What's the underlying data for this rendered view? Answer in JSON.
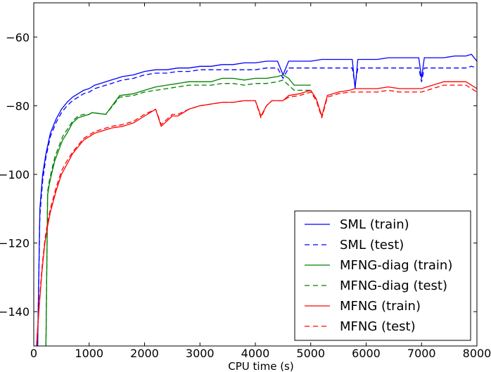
{
  "chart_data": {
    "type": "line",
    "title": "",
    "xlabel": "CPU time (s)",
    "ylabel": "",
    "xlim": [
      0,
      8000
    ],
    "ylim": [
      -150,
      -50
    ],
    "xticks": [
      0,
      1000,
      2000,
      3000,
      4000,
      5000,
      6000,
      7000,
      8000
    ],
    "yticks": [
      -140,
      -120,
      -100,
      -80,
      -60
    ],
    "xtick_labels": [
      "0",
      "1000",
      "2000",
      "3000",
      "4000",
      "5000",
      "6000",
      "7000",
      "8000"
    ],
    "ytick_labels": [
      "−140",
      "−120",
      "−100",
      "−80",
      "−60"
    ],
    "grid": false,
    "legend_position": "bottom-right",
    "series": [
      {
        "name": "SML (train)",
        "color": "#0000ff",
        "dash": "solid",
        "x": [
          70,
          110,
          160,
          220,
          300,
          400,
          500,
          600,
          700,
          800,
          900,
          1000,
          1100,
          1200,
          1300,
          1400,
          1500,
          1600,
          1800,
          2000,
          2200,
          2400,
          2600,
          2800,
          3000,
          3200,
          3400,
          3600,
          3800,
          4000,
          4200,
          4400,
          4500,
          4600,
          4800,
          5000,
          5200,
          5400,
          5600,
          5750,
          5800,
          5850,
          6000,
          6200,
          6400,
          6600,
          6800,
          6950,
          7000,
          7050,
          7200,
          7400,
          7600,
          7800,
          7900,
          8000
        ],
        "y": [
          -150,
          -110,
          -100,
          -94,
          -88,
          -84,
          -81,
          -79,
          -77.5,
          -76.5,
          -75.5,
          -75,
          -74,
          -73.5,
          -73,
          -72.5,
          -72,
          -71.5,
          -71,
          -70,
          -69.5,
          -69.5,
          -69,
          -69,
          -68.5,
          -68.5,
          -68,
          -68,
          -67.5,
          -67.5,
          -67,
          -67,
          -71,
          -67,
          -67,
          -67,
          -66.5,
          -66.5,
          -66.5,
          -66.5,
          -75,
          -66.5,
          -66.5,
          -66.5,
          -66,
          -66,
          -66,
          -66,
          -72,
          -66,
          -66,
          -66,
          -65.5,
          -65.5,
          -65,
          -67
        ]
      },
      {
        "name": "SML (test)",
        "color": "#0000ff",
        "dash": "dashed",
        "x": [
          70,
          110,
          160,
          220,
          300,
          400,
          500,
          600,
          700,
          800,
          900,
          1000,
          1100,
          1200,
          1300,
          1400,
          1500,
          1600,
          1800,
          2000,
          2200,
          2400,
          2600,
          2800,
          3000,
          3200,
          3400,
          3600,
          3800,
          4000,
          4200,
          4400,
          4500,
          4600,
          4800,
          5000,
          5200,
          5400,
          5600,
          5750,
          5800,
          5850,
          6000,
          6200,
          6400,
          6600,
          6800,
          6950,
          7000,
          7050,
          7200,
          7400,
          7600,
          7800,
          7900,
          8000
        ],
        "y": [
          -150,
          -112,
          -102,
          -95,
          -89,
          -85,
          -82,
          -80,
          -78.5,
          -77.5,
          -76.5,
          -76,
          -75,
          -74.5,
          -74,
          -73.5,
          -73,
          -72.5,
          -72,
          -71,
          -70.5,
          -70.5,
          -70,
          -70,
          -69.5,
          -69.5,
          -69.5,
          -69.5,
          -69.5,
          -69.5,
          -69,
          -69,
          -72,
          -69,
          -69,
          -69,
          -69,
          -69,
          -69,
          -69,
          -74,
          -69,
          -69,
          -69,
          -69,
          -69,
          -69,
          -69,
          -73,
          -69,
          -69,
          -69,
          -69,
          -69,
          -68.5,
          -69
        ]
      },
      {
        "name": "MFNG-diag (train)",
        "color": "#008000",
        "dash": "solid",
        "x": [
          220,
          250,
          280,
          320,
          380,
          450,
          520,
          600,
          700,
          800,
          900,
          1000,
          1050,
          1300,
          1550,
          1800,
          2000,
          2200,
          2400,
          2600,
          2800,
          3000,
          3200,
          3400,
          3600,
          3800,
          4000,
          4200,
          4400,
          4500,
          4600,
          4700,
          5000
        ],
        "y": [
          -150,
          -106,
          -103,
          -100,
          -96,
          -93,
          -90,
          -88,
          -85,
          -83.5,
          -83,
          -82.5,
          -82,
          -82.5,
          -77,
          -76.5,
          -75.5,
          -74.5,
          -74,
          -73.5,
          -73,
          -73,
          -73,
          -72,
          -72,
          -72.5,
          -72,
          -72,
          -71.5,
          -71,
          -72,
          -74,
          -74
        ]
      },
      {
        "name": "MFNG-diag (test)",
        "color": "#008000",
        "dash": "dashed",
        "x": [
          220,
          250,
          280,
          320,
          380,
          450,
          520,
          600,
          700,
          800,
          900,
          1000,
          1050,
          1300,
          1550,
          1800,
          2000,
          2200,
          2400,
          2600,
          2800,
          3000,
          3200,
          3400,
          3600,
          3800,
          4000,
          4200,
          4400,
          4500,
          4600,
          4700,
          5000
        ],
        "y": [
          -150,
          -105,
          -102,
          -99,
          -95,
          -92,
          -89,
          -87,
          -84.5,
          -83,
          -82.5,
          -82.5,
          -82,
          -82.5,
          -77.5,
          -77,
          -76,
          -75.5,
          -75,
          -74.5,
          -74,
          -74,
          -74,
          -73.5,
          -73.5,
          -74,
          -73.5,
          -73.5,
          -73,
          -72.5,
          -74,
          -75.5,
          -75.5
        ]
      },
      {
        "name": "MFNG (train)",
        "color": "#ff0000",
        "dash": "solid",
        "x": [
          50,
          100,
          150,
          200,
          250,
          300,
          350,
          400,
          500,
          600,
          700,
          800,
          900,
          1000,
          1100,
          1200,
          1300,
          1400,
          1600,
          1800,
          2000,
          2200,
          2300,
          2500,
          2600,
          2800,
          3000,
          3200,
          3400,
          3600,
          3800,
          4000,
          4100,
          4200,
          4300,
          4500,
          4600,
          4800,
          5000,
          5100,
          5200,
          5300,
          5500,
          5700,
          5800,
          6000,
          6200,
          6400,
          6600,
          6800,
          7000,
          7200,
          7400,
          7600,
          7800,
          8000
        ],
        "y": [
          -150,
          -138,
          -128,
          -120,
          -115,
          -111,
          -108,
          -105,
          -100,
          -97,
          -94,
          -92,
          -90,
          -89,
          -88,
          -87.5,
          -87,
          -86.5,
          -86,
          -85,
          -83,
          -81,
          -86,
          -83,
          -83,
          -81,
          -80,
          -79.5,
          -79,
          -79,
          -78.5,
          -78.5,
          -83,
          -80,
          -78.5,
          -78.5,
          -77,
          -76.5,
          -75.5,
          -78,
          -83,
          -77,
          -76,
          -75.5,
          -75,
          -75,
          -75,
          -74.5,
          -75,
          -75,
          -75,
          -74,
          -73,
          -73,
          -73,
          -75
        ]
      },
      {
        "name": "MFNG (test)",
        "color": "#ff0000",
        "dash": "dashed",
        "x": [
          50,
          100,
          150,
          200,
          250,
          300,
          350,
          400,
          500,
          600,
          700,
          800,
          900,
          1000,
          1100,
          1200,
          1300,
          1400,
          1600,
          1800,
          2000,
          2200,
          2300,
          2500,
          2600,
          2800,
          3000,
          3200,
          3400,
          3600,
          3800,
          4000,
          4100,
          4200,
          4300,
          4500,
          4600,
          4800,
          5000,
          5100,
          5200,
          5300,
          5500,
          5700,
          5800,
          6000,
          6200,
          6400,
          6600,
          6800,
          7000,
          7200,
          7400,
          7600,
          7800,
          8000
        ],
        "y": [
          -150,
          -137,
          -127,
          -119,
          -114,
          -110,
          -107,
          -104,
          -99,
          -96,
          -93.5,
          -91.5,
          -89.5,
          -88.5,
          -87.5,
          -87,
          -86.5,
          -86,
          -85.5,
          -84.5,
          -82.5,
          -81,
          -85.5,
          -82.5,
          -82.5,
          -81,
          -80,
          -79.5,
          -79,
          -79,
          -78.5,
          -78.5,
          -83.5,
          -80,
          -78.5,
          -78.5,
          -77.5,
          -77,
          -76,
          -78.5,
          -83.5,
          -77.5,
          -76.5,
          -76,
          -76,
          -76,
          -76,
          -75.5,
          -76,
          -76,
          -76,
          -75,
          -74,
          -74,
          -74,
          -76
        ]
      }
    ]
  }
}
